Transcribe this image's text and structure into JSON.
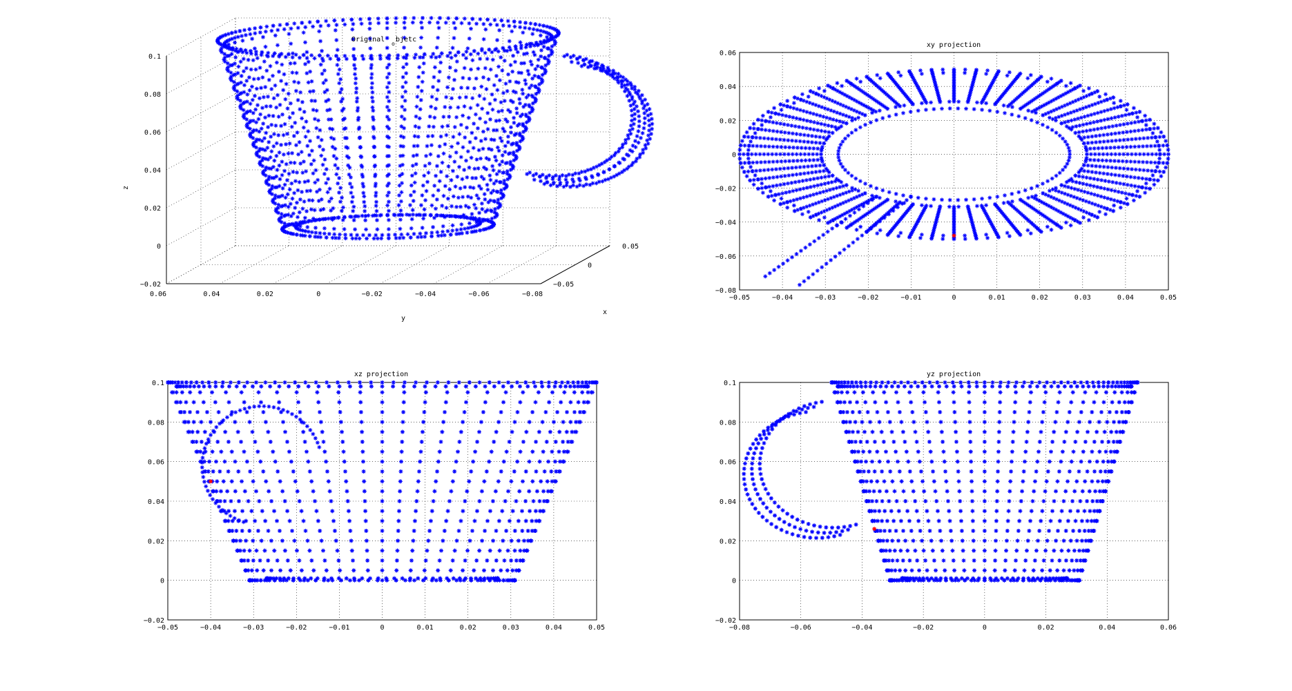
{
  "figure": {
    "colors": {
      "points": "#0000ff",
      "marker": "#ff0000",
      "axis": "#000000",
      "grid": "#000000",
      "background": "#ffffff"
    }
  },
  "chart_data": [
    {
      "type": "scatter",
      "view": "3d",
      "title_parts": [
        "Original",
        "o",
        "bjetc"
      ],
      "xlabel": "y",
      "ylabel": "x",
      "zlabel": "z",
      "y_ticks": [
        "0.06",
        "0.04",
        "0.02",
        "0",
        "−0.02",
        "−0.04",
        "−0.06",
        "−0.08"
      ],
      "x_ticks": [
        "0.05",
        "0",
        "−0.05"
      ],
      "z_ticks": [
        "0.1",
        "0.08",
        "0.06",
        "0.04",
        "0.02",
        "0",
        "−0.02"
      ],
      "ylim": [
        -0.08,
        0.06
      ],
      "xlim": [
        -0.05,
        0.05
      ],
      "zlim": [
        -0.02,
        0.1
      ],
      "grid": true,
      "marker": "*"
    },
    {
      "type": "scatter",
      "title": "xy projection",
      "xticks": [
        "−0.05",
        "−0.04",
        "−0.03",
        "−0.02",
        "−0.01",
        "0",
        "0.01",
        "0.02",
        "0.03",
        "0.04",
        "0.05"
      ],
      "yticks": [
        "0.06",
        "0.04",
        "0.02",
        "0",
        "−0.02",
        "−0.04",
        "−0.06",
        "−0.08"
      ],
      "xlim": [
        -0.05,
        0.05
      ],
      "ylim": [
        -0.08,
        0.06
      ],
      "grid": true,
      "marker": "*",
      "highlight": {
        "x": 0.0,
        "y": -0.048
      }
    },
    {
      "type": "scatter",
      "title": "xz projection",
      "xticks": [
        "−0.05",
        "−0.04",
        "−0.03",
        "−0.02",
        "−0.01",
        "0",
        "0.01",
        "0.02",
        "0.03",
        "0.04",
        "0.05"
      ],
      "yticks": [
        "0.1",
        "0.08",
        "0.06",
        "0.04",
        "0.02",
        "0",
        "−0.02"
      ],
      "xlim": [
        -0.05,
        0.05
      ],
      "ylim": [
        -0.02,
        0.1
      ],
      "grid": true,
      "marker": "*",
      "highlight": {
        "x": -0.04,
        "y": 0.05
      }
    },
    {
      "type": "scatter",
      "title": "yz projection",
      "xticks": [
        "−0.08",
        "−0.06",
        "−0.04",
        "−0.02",
        "0",
        "0.02",
        "0.04",
        "0.06"
      ],
      "yticks": [
        "0.1",
        "0.08",
        "0.06",
        "0.04",
        "0.02",
        "0",
        "−0.02"
      ],
      "xlim": [
        -0.08,
        0.06
      ],
      "ylim": [
        -0.02,
        0.1
      ],
      "grid": true,
      "marker": "*",
      "highlight": {
        "x": -0.036,
        "y": 0.026
      }
    }
  ]
}
